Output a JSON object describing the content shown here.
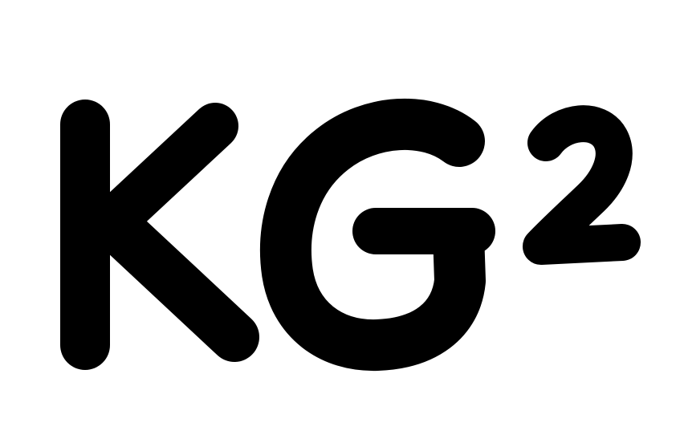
{
  "logo": {
    "text": "KG²",
    "main_letters": "KG",
    "superscript": "2",
    "color": "#000000",
    "background": "#ffffff"
  }
}
